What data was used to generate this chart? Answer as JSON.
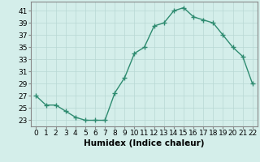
{
  "x": [
    0,
    1,
    2,
    3,
    4,
    5,
    6,
    7,
    8,
    9,
    10,
    11,
    12,
    13,
    14,
    15,
    16,
    17,
    18,
    19,
    20,
    21,
    22
  ],
  "y": [
    27,
    25.5,
    25.5,
    24.5,
    23.5,
    23,
    23,
    23,
    27.5,
    30,
    34,
    35,
    38.5,
    39,
    41,
    41.5,
    40,
    39.5,
    39,
    37,
    35,
    33.5,
    29
  ],
  "line_color": "#2e8b70",
  "marker": "+",
  "marker_color": "#2e8b70",
  "bg_color": "#d4eeea",
  "grid_color": "#b8d8d4",
  "xlabel": "Humidex (Indice chaleur)",
  "xlim": [
    -0.5,
    22.5
  ],
  "ylim": [
    22,
    42.5
  ],
  "yticks": [
    23,
    25,
    27,
    29,
    31,
    33,
    35,
    37,
    39,
    41
  ],
  "xticks": [
    0,
    1,
    2,
    3,
    4,
    5,
    6,
    7,
    8,
    9,
    10,
    11,
    12,
    13,
    14,
    15,
    16,
    17,
    18,
    19,
    20,
    21,
    22
  ],
  "tick_fontsize": 6.5,
  "xlabel_fontsize": 7.5,
  "linewidth": 1.0,
  "markersize": 4,
  "spine_color": "#888888"
}
